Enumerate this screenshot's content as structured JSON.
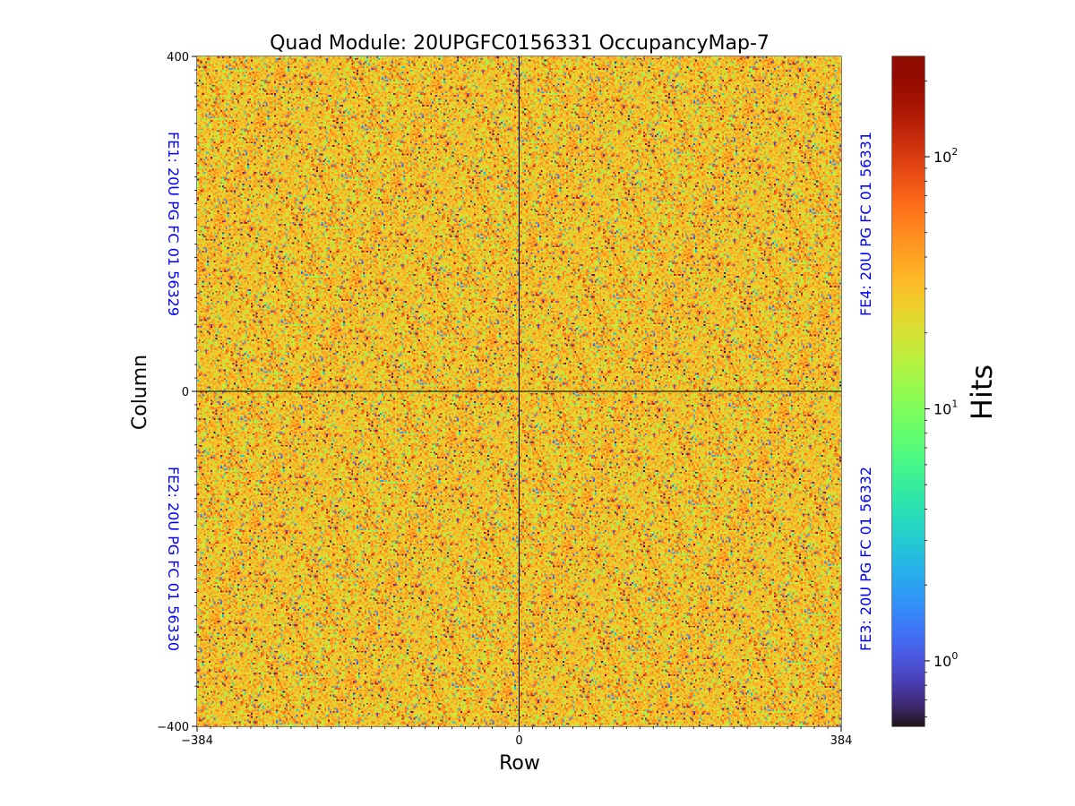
{
  "chart_data": {
    "type": "heatmap",
    "title": "Quad Module: 20UPGFC0156331 OccupancyMap-7",
    "xlabel": "Row",
    "ylabel": "Column",
    "xlim": [
      -384,
      384
    ],
    "ylim": [
      -400,
      400
    ],
    "x_ticks": [
      -384,
      0,
      384
    ],
    "y_ticks": [
      -400,
      0,
      400
    ],
    "x_tick_labels": [
      "−384",
      "0",
      "384"
    ],
    "y_tick_labels": [
      "−400",
      "0",
      "400"
    ],
    "divider_lines": {
      "x": 0,
      "y": 0
    },
    "chips": [
      {
        "id": "FE1",
        "label": "FE1: 20U PG FC 01 56329",
        "quadrant": "top-left"
      },
      {
        "id": "FE2",
        "label": "FE2: 20U PG FC 01 56330",
        "quadrant": "bottom-left"
      },
      {
        "id": "FE3",
        "label": "FE3: 20U PG FC 01 56332",
        "quadrant": "bottom-right"
      },
      {
        "id": "FE4",
        "label": "FE4: 20U PG FC 01 56331",
        "quadrant": "top-right"
      }
    ],
    "annotation_color": "#0000ff",
    "colorbar": {
      "label": "Hits",
      "scale": "log",
      "colormap": "turbo",
      "vmin": 0.55,
      "vmax": 250,
      "ticks": [
        {
          "value": 1,
          "base": "10",
          "exp": "0"
        },
        {
          "value": 10,
          "base": "10",
          "exp": "1"
        },
        {
          "value": 100,
          "base": "10",
          "exp": "2"
        }
      ]
    },
    "occupancy_summary": {
      "typical_hits": 30,
      "distribution": "random per-pixel occupancy, mostly 15-60 hits with sparse low and high pixels"
    }
  }
}
